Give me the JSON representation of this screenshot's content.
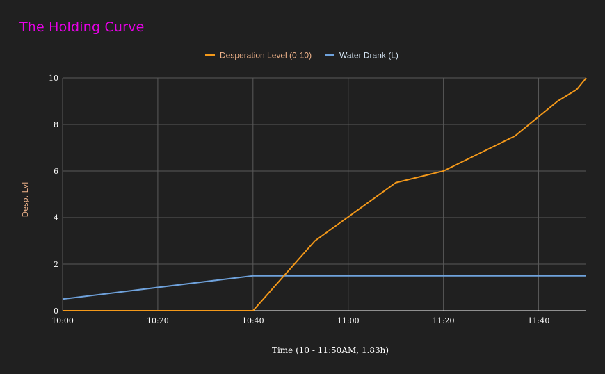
{
  "colors": {
    "background": "#202020",
    "title": "#e800e8",
    "grid": "#5a5a5a",
    "axis": "#ffffff",
    "ylabel": "#f0b38a",
    "desperation": "#f4991a",
    "water": "#6fa2dc",
    "legend_desperation_text": "#f0b38a",
    "legend_water_text": "#d6e6f5"
  },
  "chart_data": {
    "type": "line",
    "title": "The Holding Curve",
    "xlabel": "Time (10 - 11:50AM, 1.83h)",
    "ylabel": "Desp. Lvl",
    "xlim": [
      "10:00",
      "11:50"
    ],
    "ylim": [
      0,
      10
    ],
    "x_ticks": [
      "10:00",
      "10:20",
      "10:40",
      "11:00",
      "11:20",
      "11:40"
    ],
    "y_ticks": [
      "0",
      "2",
      "4",
      "6",
      "8",
      "10"
    ],
    "grid": true,
    "legend_position": "top-center",
    "series": [
      {
        "name": "Desperation Level (0-10)",
        "color": "#f4991a",
        "x": [
          "10:00",
          "10:40",
          "10:53",
          "11:10",
          "11:20",
          "11:35",
          "11:44",
          "11:48",
          "11:50"
        ],
        "y": [
          0,
          0,
          3,
          5.5,
          6,
          7.5,
          9,
          9.5,
          10
        ]
      },
      {
        "name": "Water Drank (L)",
        "color": "#6fa2dc",
        "x": [
          "10:00",
          "10:40",
          "11:50"
        ],
        "y": [
          0.5,
          1.5,
          1.5
        ]
      }
    ]
  }
}
